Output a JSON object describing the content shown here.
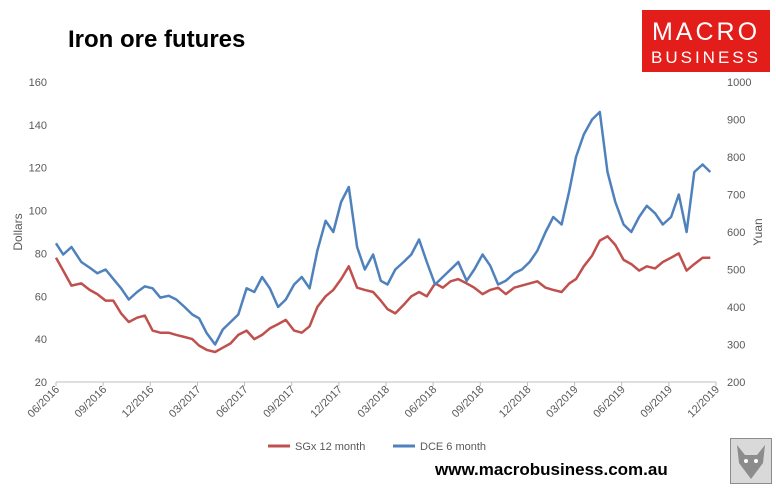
{
  "title": "Iron ore futures",
  "logo": {
    "line1": "MACRO",
    "line2": "BUSINESS",
    "background": "#e31d1a"
  },
  "website": "www.macrobusiness.com.au",
  "chart_data": {
    "type": "line",
    "grid": false,
    "legend_position": "bottom",
    "y_left": {
      "label": "Dollars",
      "range": [
        20,
        160
      ],
      "ticks": [
        "160",
        "140",
        "120",
        "100",
        "80",
        "60",
        "40",
        "20"
      ]
    },
    "y_right": {
      "label": "Yuan",
      "range": [
        200,
        1000
      ],
      "ticks": [
        "1000",
        "900",
        "800",
        "700",
        "600",
        "500",
        "400",
        "300",
        "200"
      ]
    },
    "x_ticks": [
      "06/2016",
      "09/2016",
      "12/2016",
      "03/2017",
      "06/2017",
      "09/2017",
      "12/2017",
      "03/2018",
      "06/2018",
      "09/2018",
      "12/2018",
      "03/2019",
      "06/2019",
      "09/2019",
      "12/2019"
    ],
    "x_range": [
      "2016-06-01",
      "2019-12-01"
    ],
    "series": [
      {
        "name": "SGx 12 month",
        "axis": "left",
        "color": "#c0504d",
        "x": [
          "2016-06-01",
          "2016-06-15",
          "2016-07-01",
          "2016-07-20",
          "2016-08-05",
          "2016-08-20",
          "2016-09-05",
          "2016-09-20",
          "2016-10-05",
          "2016-10-20",
          "2016-11-05",
          "2016-11-20",
          "2016-12-05",
          "2016-12-20",
          "2017-01-05",
          "2017-01-20",
          "2017-02-05",
          "2017-02-20",
          "2017-03-05",
          "2017-03-20",
          "2017-04-05",
          "2017-04-20",
          "2017-05-05",
          "2017-05-20",
          "2017-06-05",
          "2017-06-20",
          "2017-07-05",
          "2017-07-20",
          "2017-08-05",
          "2017-08-20",
          "2017-09-05",
          "2017-09-20",
          "2017-10-05",
          "2017-10-20",
          "2017-11-05",
          "2017-11-20",
          "2017-12-05",
          "2017-12-20",
          "2018-01-05",
          "2018-01-20",
          "2018-02-05",
          "2018-02-20",
          "2018-03-05",
          "2018-03-20",
          "2018-04-05",
          "2018-04-20",
          "2018-05-05",
          "2018-05-20",
          "2018-06-05",
          "2018-06-20",
          "2018-07-05",
          "2018-07-20",
          "2018-08-05",
          "2018-08-20",
          "2018-09-05",
          "2018-09-20",
          "2018-10-05",
          "2018-10-20",
          "2018-11-05",
          "2018-11-20",
          "2018-12-05",
          "2018-12-20",
          "2019-01-05",
          "2019-01-20",
          "2019-02-05",
          "2019-02-20",
          "2019-03-05",
          "2019-03-20",
          "2019-04-05",
          "2019-04-20",
          "2019-05-05",
          "2019-05-20",
          "2019-06-05",
          "2019-06-20",
          "2019-07-05",
          "2019-07-20",
          "2019-08-05",
          "2019-08-20",
          "2019-09-05",
          "2019-09-20",
          "2019-10-05",
          "2019-10-20",
          "2019-11-05",
          "2019-11-20"
        ],
        "y": [
          78,
          72,
          65,
          66,
          63,
          61,
          58,
          58,
          52,
          48,
          50,
          51,
          44,
          43,
          43,
          42,
          41,
          40,
          37,
          35,
          34,
          36,
          38,
          42,
          44,
          40,
          42,
          45,
          47,
          49,
          44,
          43,
          46,
          55,
          60,
          63,
          68,
          74,
          64,
          63,
          62,
          58,
          54,
          52,
          56,
          60,
          62,
          60,
          66,
          64,
          67,
          68,
          66,
          64,
          61,
          63,
          64,
          61,
          64,
          65,
          66,
          67,
          64,
          63,
          62,
          66,
          68,
          74,
          79,
          86,
          88,
          84,
          77,
          75,
          72,
          74,
          73,
          76,
          78,
          80,
          72,
          75,
          78,
          78
        ]
      },
      {
        "name": "DCE 6 month",
        "axis": "right",
        "color": "#4f81bd",
        "x": [
          "2016-06-01",
          "2016-06-15",
          "2016-07-01",
          "2016-07-20",
          "2016-08-05",
          "2016-08-20",
          "2016-09-05",
          "2016-09-20",
          "2016-10-05",
          "2016-10-20",
          "2016-11-05",
          "2016-11-20",
          "2016-12-05",
          "2016-12-20",
          "2017-01-05",
          "2017-01-20",
          "2017-02-05",
          "2017-02-20",
          "2017-03-05",
          "2017-03-20",
          "2017-04-05",
          "2017-04-20",
          "2017-05-05",
          "2017-05-20",
          "2017-06-05",
          "2017-06-20",
          "2017-07-05",
          "2017-07-20",
          "2017-08-05",
          "2017-08-20",
          "2017-09-05",
          "2017-09-20",
          "2017-10-05",
          "2017-10-20",
          "2017-11-05",
          "2017-11-20",
          "2017-12-05",
          "2017-12-20",
          "2018-01-05",
          "2018-01-20",
          "2018-02-05",
          "2018-02-20",
          "2018-03-05",
          "2018-03-20",
          "2018-04-05",
          "2018-04-20",
          "2018-05-05",
          "2018-05-20",
          "2018-06-05",
          "2018-06-20",
          "2018-07-05",
          "2018-07-20",
          "2018-08-05",
          "2018-08-20",
          "2018-09-05",
          "2018-09-20",
          "2018-10-05",
          "2018-10-20",
          "2018-11-05",
          "2018-11-20",
          "2018-12-05",
          "2018-12-20",
          "2019-01-05",
          "2019-01-20",
          "2019-02-05",
          "2019-02-20",
          "2019-03-05",
          "2019-03-20",
          "2019-04-05",
          "2019-04-20",
          "2019-05-05",
          "2019-05-20",
          "2019-06-05",
          "2019-06-20",
          "2019-07-05",
          "2019-07-20",
          "2019-08-05",
          "2019-08-20",
          "2019-09-05",
          "2019-09-20",
          "2019-10-05",
          "2019-10-20",
          "2019-11-05",
          "2019-11-20"
        ],
        "y": [
          570,
          540,
          560,
          520,
          505,
          490,
          500,
          475,
          450,
          420,
          440,
          455,
          450,
          425,
          430,
          420,
          400,
          380,
          370,
          330,
          300,
          340,
          360,
          380,
          450,
          440,
          480,
          450,
          400,
          420,
          460,
          480,
          450,
          550,
          630,
          600,
          680,
          720,
          560,
          500,
          540,
          470,
          460,
          500,
          520,
          540,
          580,
          520,
          460,
          480,
          500,
          520,
          470,
          500,
          540,
          510,
          460,
          470,
          490,
          500,
          520,
          550,
          600,
          640,
          620,
          710,
          800,
          860,
          900,
          920,
          760,
          680,
          620,
          600,
          640,
          670,
          650,
          620,
          640,
          700,
          600,
          760,
          780,
          760
        ]
      }
    ]
  }
}
